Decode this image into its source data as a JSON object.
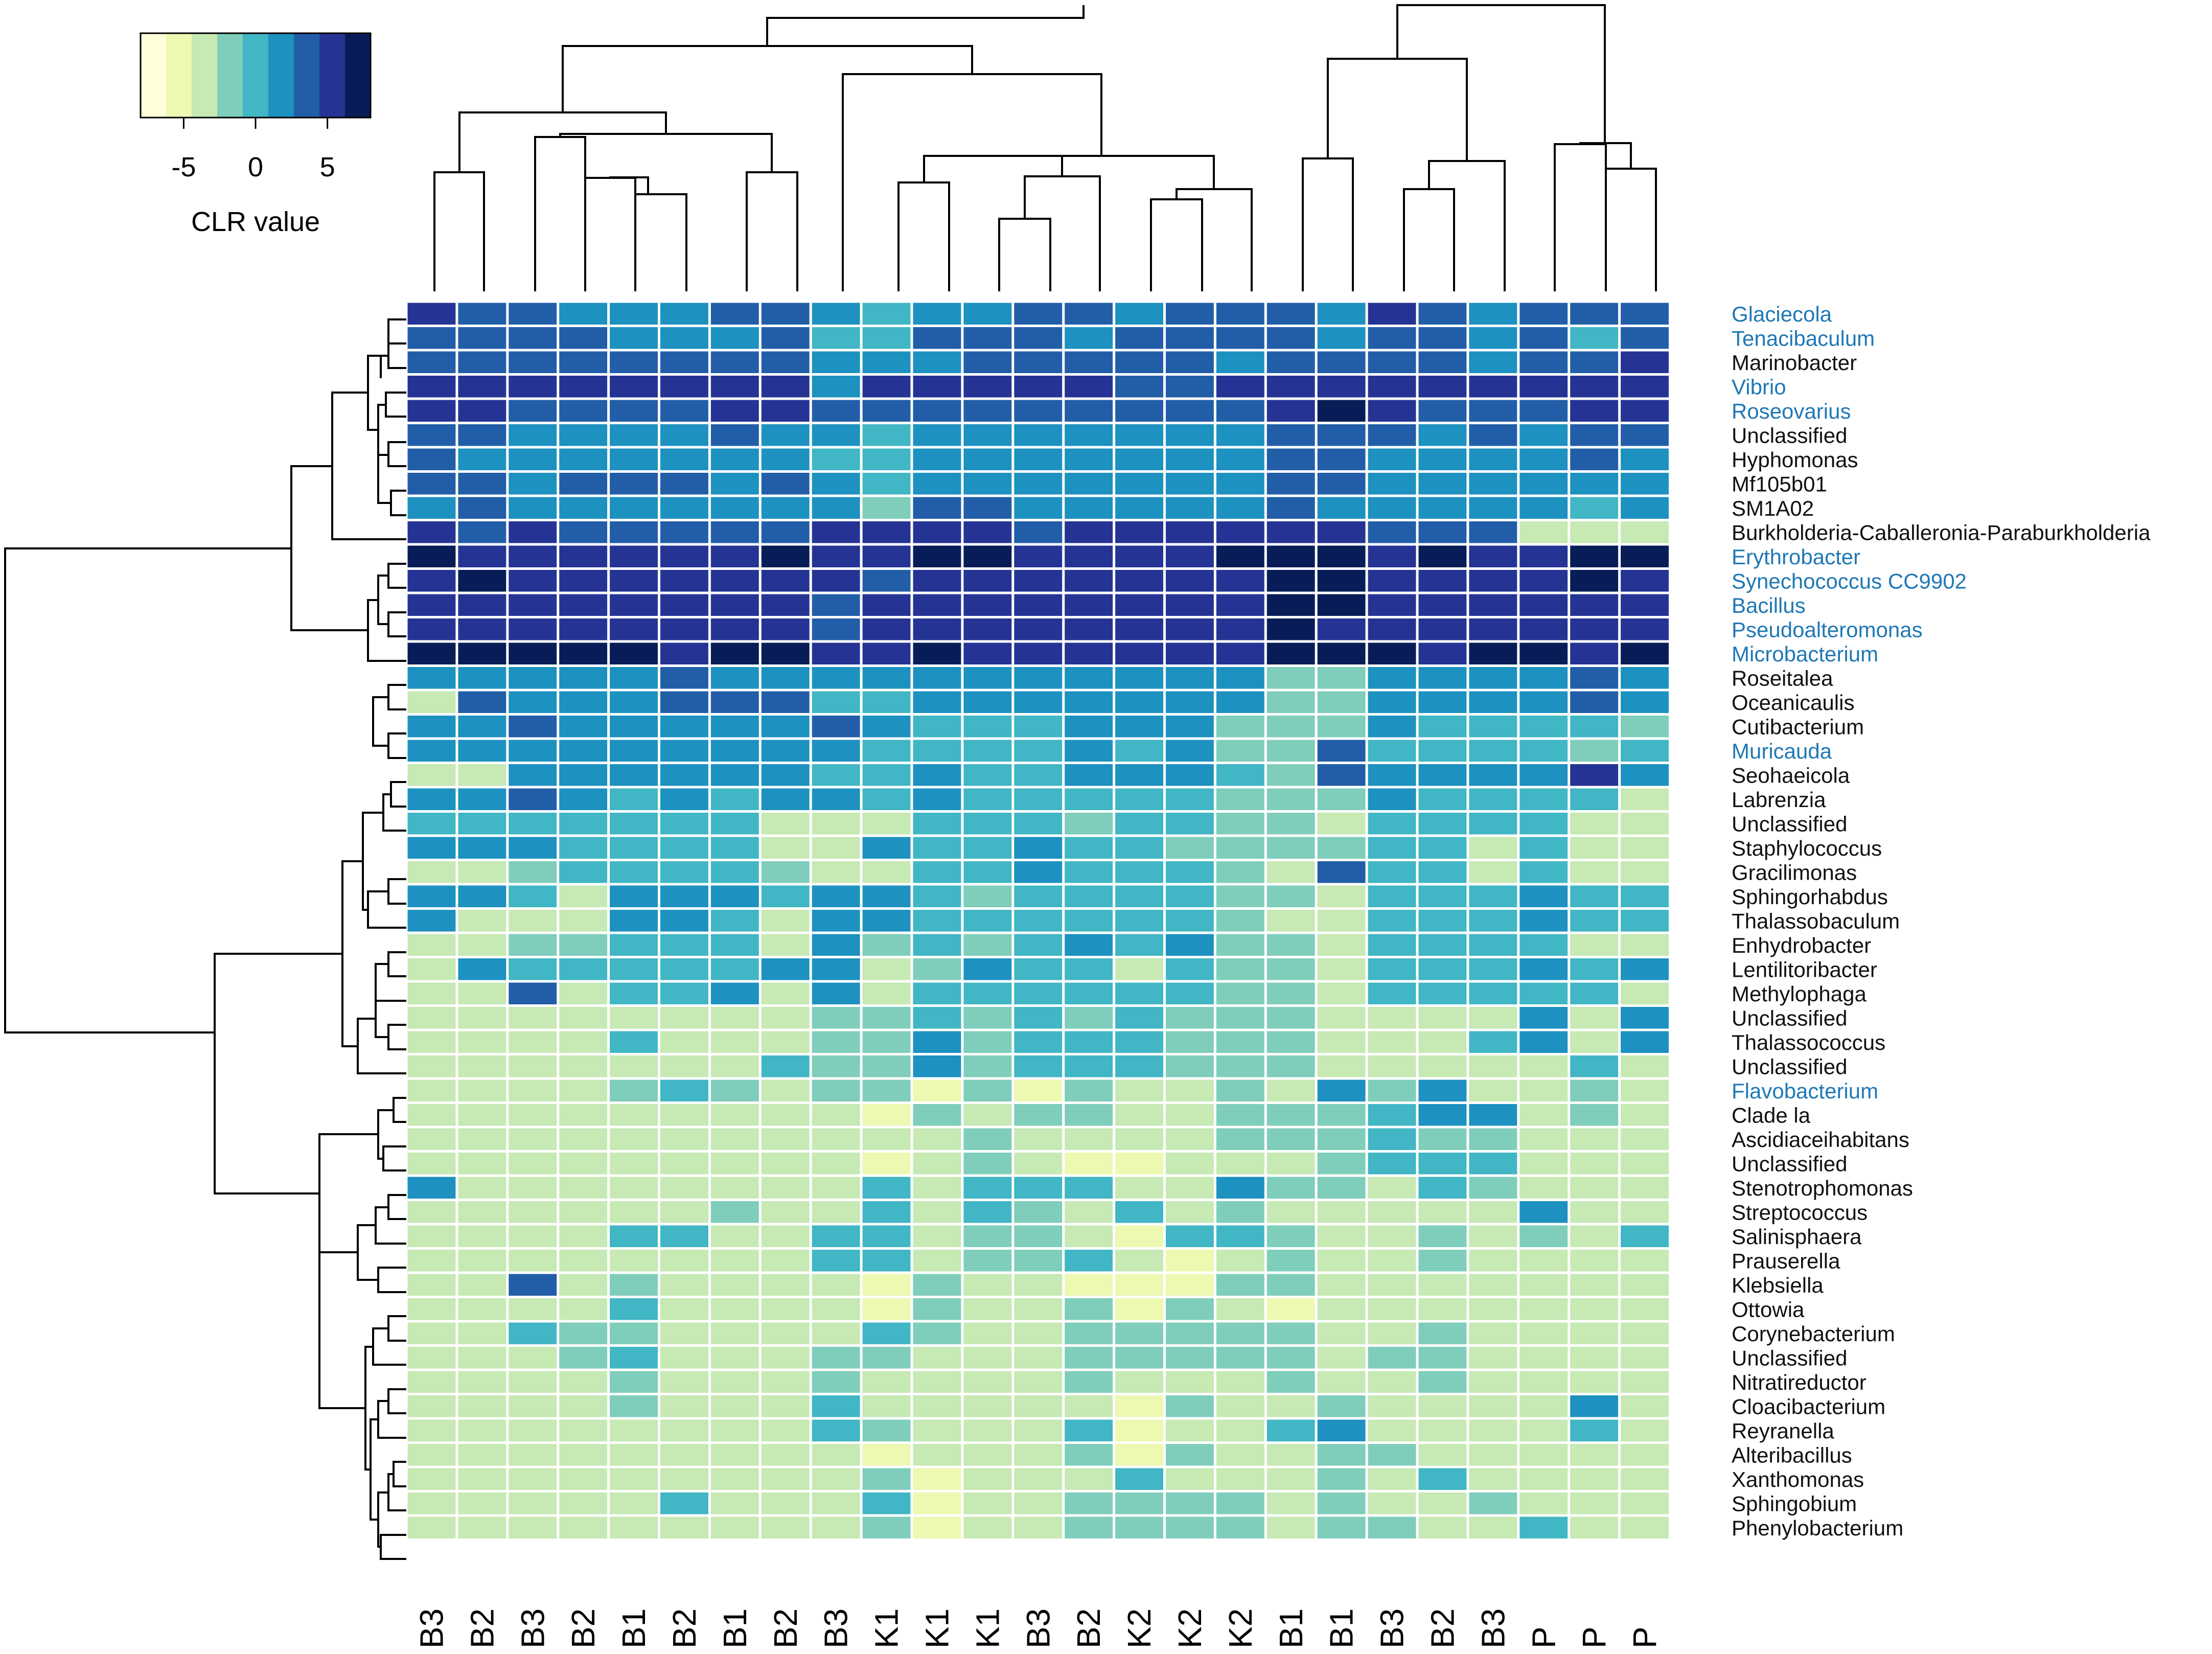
{
  "chart_data": {
    "type": "heatmap",
    "title": "",
    "legend": {
      "title": "CLR value",
      "ticks": [
        -5,
        0,
        5
      ],
      "range": [
        -8,
        8
      ],
      "colors": [
        "#ffffd9",
        "#edf8b1",
        "#c7e9b4",
        "#7fcdbb",
        "#41b6c4",
        "#1d91c0",
        "#225ea8",
        "#253494",
        "#081d58"
      ]
    },
    "label_colors": {
      "highlight": "#1f78b4",
      "normal": "#111111"
    },
    "columns": [
      "B3",
      "B2",
      "B3",
      "B2",
      "B1",
      "B2",
      "B1",
      "B2",
      "B3",
      "K1",
      "K1",
      "K1",
      "B3",
      "B2",
      "K2",
      "K2",
      "K2",
      "B1",
      "B1",
      "B3",
      "B2",
      "B3",
      "P",
      "P",
      "P"
    ],
    "rows": [
      {
        "name": "Glaciecola",
        "highlight": true
      },
      {
        "name": "Tenacibaculum",
        "highlight": true
      },
      {
        "name": "Marinobacter",
        "highlight": false
      },
      {
        "name": "Vibrio",
        "highlight": true
      },
      {
        "name": "Roseovarius",
        "highlight": true
      },
      {
        "name": "Unclassified",
        "highlight": false
      },
      {
        "name": "Hyphomonas",
        "highlight": false
      },
      {
        "name": "Mf105b01",
        "highlight": false
      },
      {
        "name": "SM1A02",
        "highlight": false
      },
      {
        "name": "Burkholderia-Caballeronia-Paraburkholderia",
        "highlight": false
      },
      {
        "name": "Erythrobacter",
        "highlight": true
      },
      {
        "name": "Synechococcus CC9902",
        "highlight": true
      },
      {
        "name": "Bacillus",
        "highlight": true
      },
      {
        "name": "Pseudoalteromonas",
        "highlight": true
      },
      {
        "name": "Microbacterium",
        "highlight": true
      },
      {
        "name": "Roseitalea",
        "highlight": false
      },
      {
        "name": "Oceanicaulis",
        "highlight": false
      },
      {
        "name": "Cutibacterium",
        "highlight": false
      },
      {
        "name": "Muricauda",
        "highlight": true
      },
      {
        "name": "Seohaeicola",
        "highlight": false
      },
      {
        "name": "Labrenzia",
        "highlight": false
      },
      {
        "name": "Unclassified",
        "highlight": false
      },
      {
        "name": "Staphylococcus",
        "highlight": false
      },
      {
        "name": "Gracilimonas",
        "highlight": false
      },
      {
        "name": "Sphingorhabdus",
        "highlight": false
      },
      {
        "name": "Thalassobaculum",
        "highlight": false
      },
      {
        "name": "Enhydrobacter",
        "highlight": false
      },
      {
        "name": "Lentilitoribacter",
        "highlight": false
      },
      {
        "name": "Methylophaga",
        "highlight": false
      },
      {
        "name": "Unclassified",
        "highlight": false
      },
      {
        "name": "Thalassococcus",
        "highlight": false
      },
      {
        "name": "Unclassified",
        "highlight": false
      },
      {
        "name": "Flavobacterium",
        "highlight": true
      },
      {
        "name": "Clade la",
        "highlight": false
      },
      {
        "name": "Ascidiaceihabitans",
        "highlight": false
      },
      {
        "name": "Unclassified",
        "highlight": false
      },
      {
        "name": "Stenotrophomonas",
        "highlight": false
      },
      {
        "name": "Streptococcus",
        "highlight": false
      },
      {
        "name": "Salinisphaera",
        "highlight": false
      },
      {
        "name": "Prauserella",
        "highlight": false
      },
      {
        "name": "Klebsiella",
        "highlight": false
      },
      {
        "name": "Ottowia",
        "highlight": false
      },
      {
        "name": "Corynebacterium",
        "highlight": false
      },
      {
        "name": "Unclassified",
        "highlight": false
      },
      {
        "name": "Nitratireductor",
        "highlight": false
      },
      {
        "name": "Cloacibacterium",
        "highlight": false
      },
      {
        "name": "Reyranella",
        "highlight": false
      },
      {
        "name": "Alteribacillus",
        "highlight": false
      },
      {
        "name": "Xanthomonas",
        "highlight": false
      },
      {
        "name": "Sphingobium",
        "highlight": false
      },
      {
        "name": "Phenylobacterium",
        "highlight": false
      }
    ],
    "values_color_index": [
      "7665556654556656665765666",
      "6666555644666566665665646",
      "6666666655566666566665667",
      "7777777757777766777777777",
      "7766667766666666678766677",
      "6655556554555555566656566",
      "6555555544555555566555565",
      "6656665654555555566555555",
      "5655555553665555565555545",
      "7676666677776777777666222",
      "8777777877887777888787788",
      "7877777776777777788777787",
      "7777777767777777788777777",
      "7777777767777777787777777",
      "8888878877877777788878878",
      "5555565555555555533555565",
      "2655566644555555533555565",
      "5565555565444555333544443",
      "5555555554444545336444434",
      "2255555544544555436555575",
      "5565454554544444333544442",
      "4444444222444344332444422",
      "5554444225445443333442422",
      "2234444322445444326442422",
      "5542555455434444332444544",
      "5222554255444444322444544",
      "2233444253434545332444422",
      "2544444552354424332444545",
      "2262445252444444332444442",
      "2222222233434343332222525",
      "2222422233534443332224525",
      "2222222433534443332222242",
      "2222343233131322325352232",
      "2222222221323322333455232",
      "2222222222232222333433222",
      "2222222221232112223444222",
      "5222222224244422533243222",
      "2222223224243242322222522",
      "2222442244233214432232324",
      "2222222244233421232232222",
      "2262322221322111332222222",
      "2222422221322313212222222",
      "2243322224322333332232222",
      "2223422233222333332332222",
      "2222322232222322232232222",
      "2222322242222213223222252",
      "2222222243222412245222242",
      "2222222221222313223322222",
      "2222222223122242223242222",
      "2222242224122333323223222",
      "2222222223122333323322422"
    ]
  }
}
